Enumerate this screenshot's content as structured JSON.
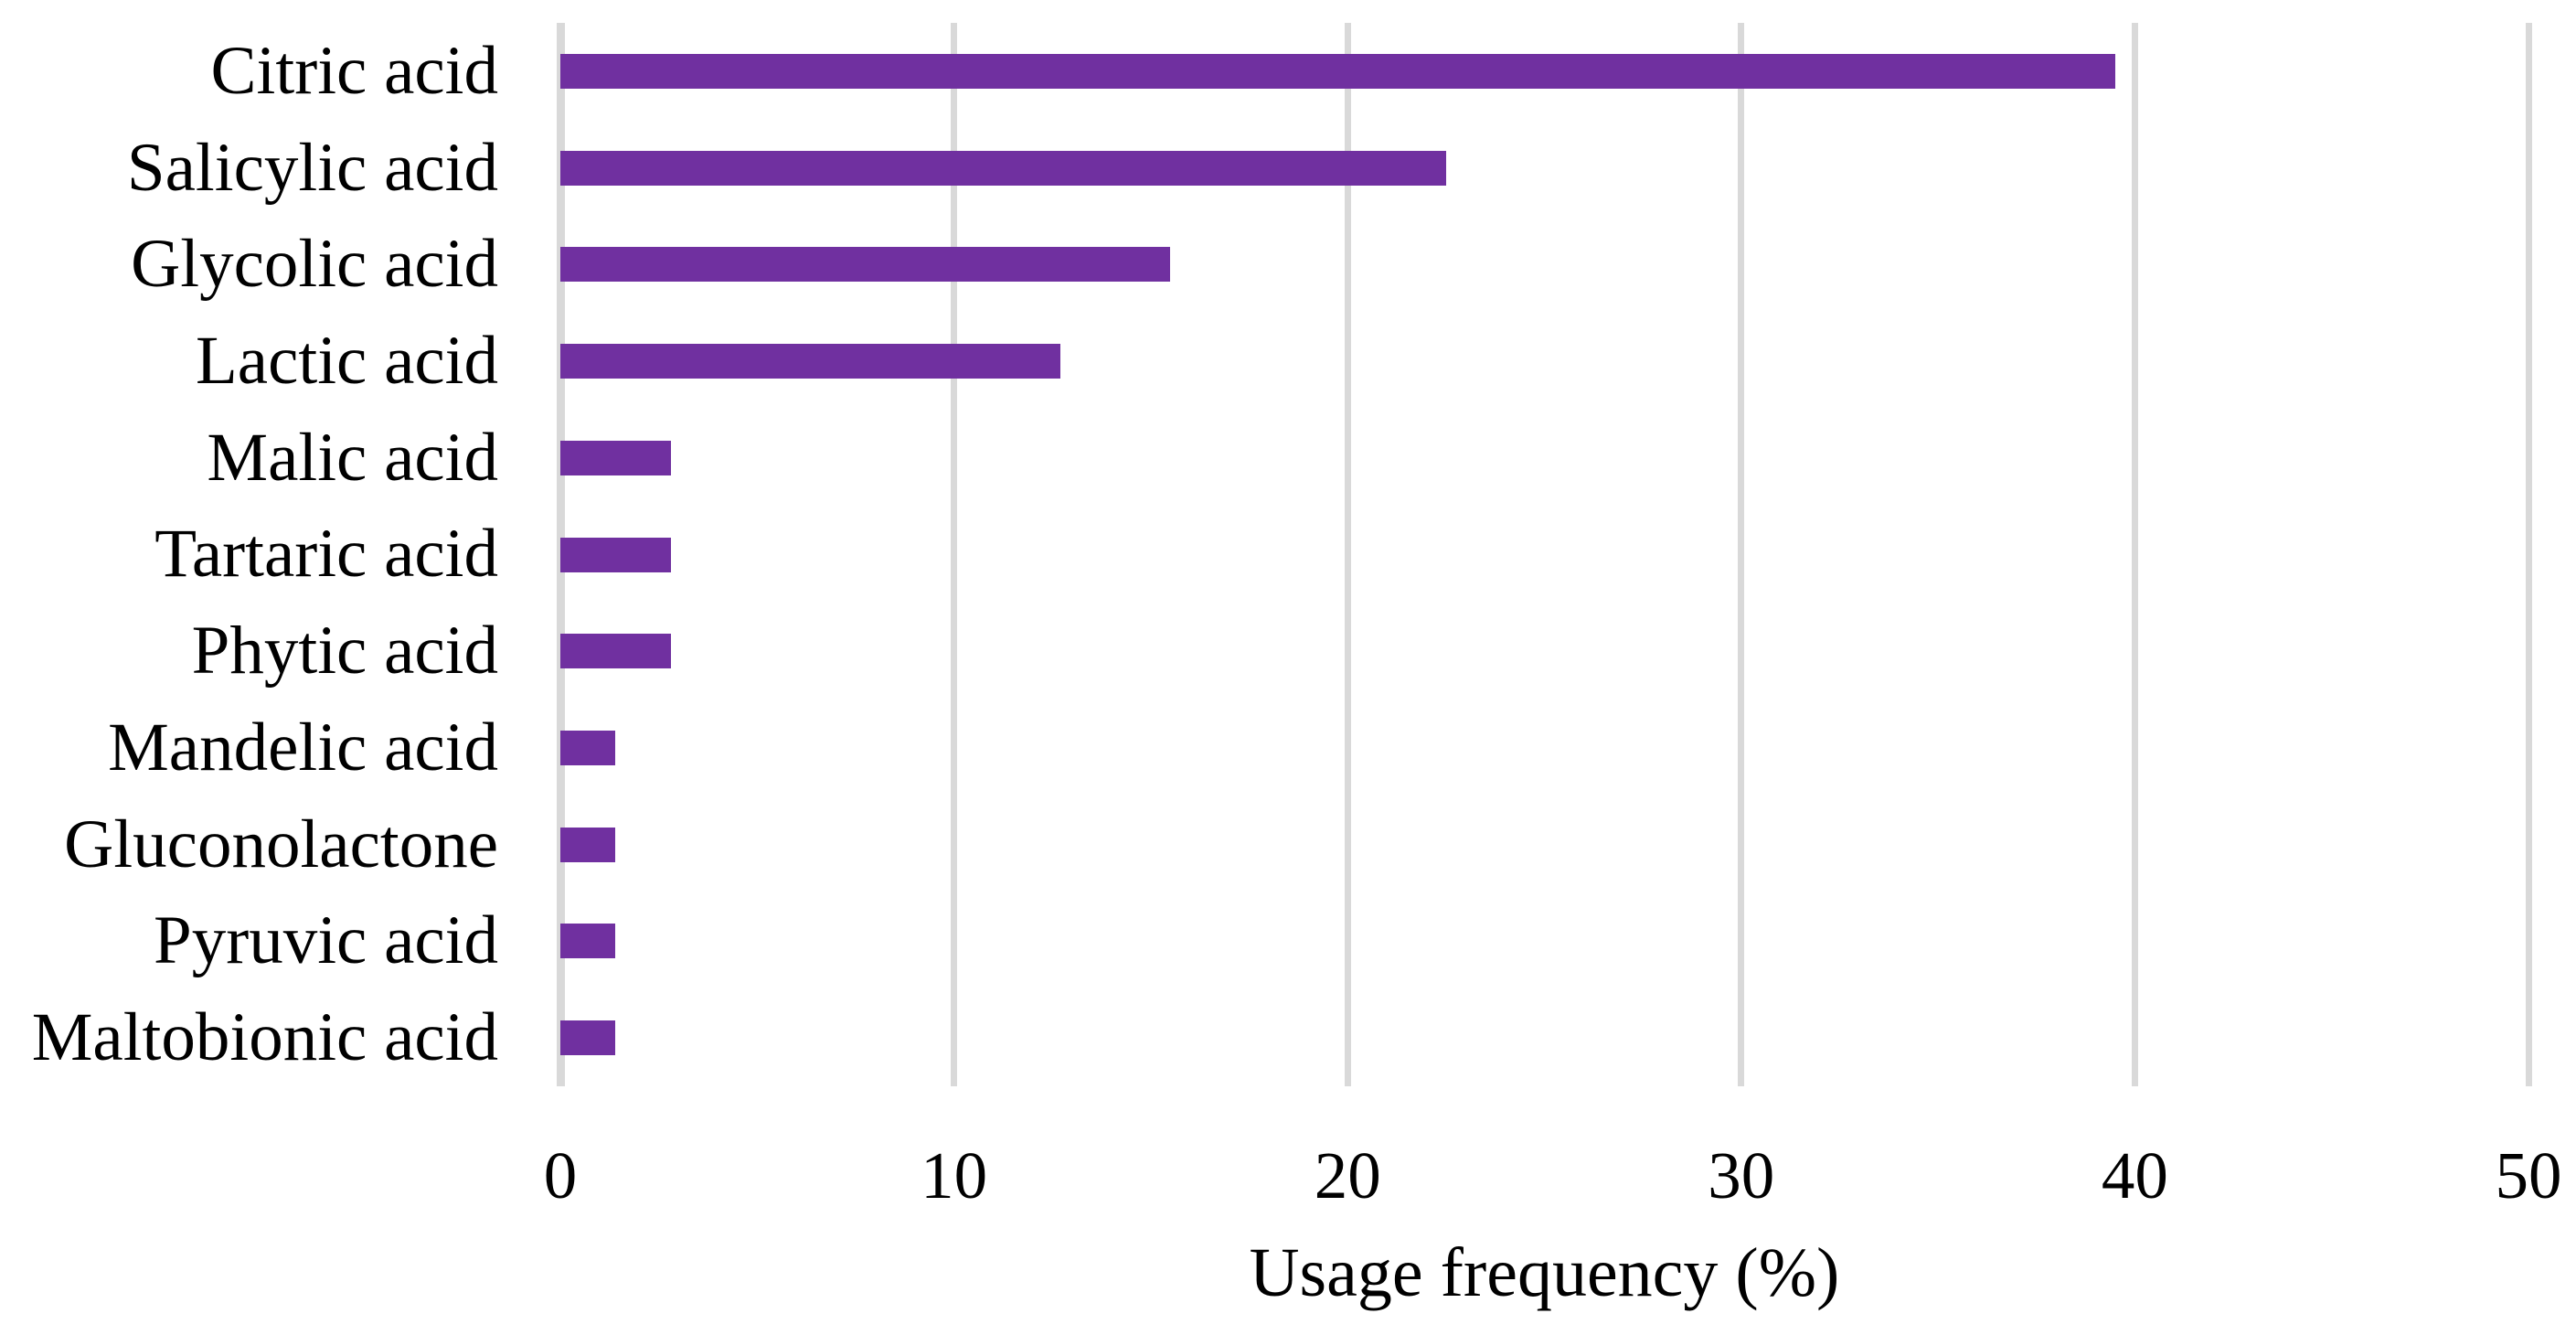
{
  "chart_data": {
    "type": "bar",
    "orientation": "horizontal",
    "title": "",
    "xlabel": "Usage frequency (%)",
    "ylabel": "",
    "categories": [
      "Citric acid",
      "Salicylic acid",
      "Glycolic acid",
      "Lactic acid",
      "Malic acid",
      "Tartaric acid",
      "Phytic acid",
      "Mandelic acid",
      "Gluconolactone",
      "Pyruvic acid",
      "Maltobionic acid"
    ],
    "values": [
      39.5,
      22.5,
      15.5,
      12.7,
      2.8,
      2.8,
      2.8,
      1.4,
      1.4,
      1.4,
      1.4
    ],
    "x_ticks": [
      "0",
      "10",
      "20",
      "30",
      "40",
      "50"
    ],
    "xlim": [
      0,
      50
    ],
    "grid": true,
    "legend": "none",
    "bar_color": "#7030a0",
    "gridline_color": "#d9d9d9",
    "text_color": "#000000",
    "background": "#ffffff"
  }
}
